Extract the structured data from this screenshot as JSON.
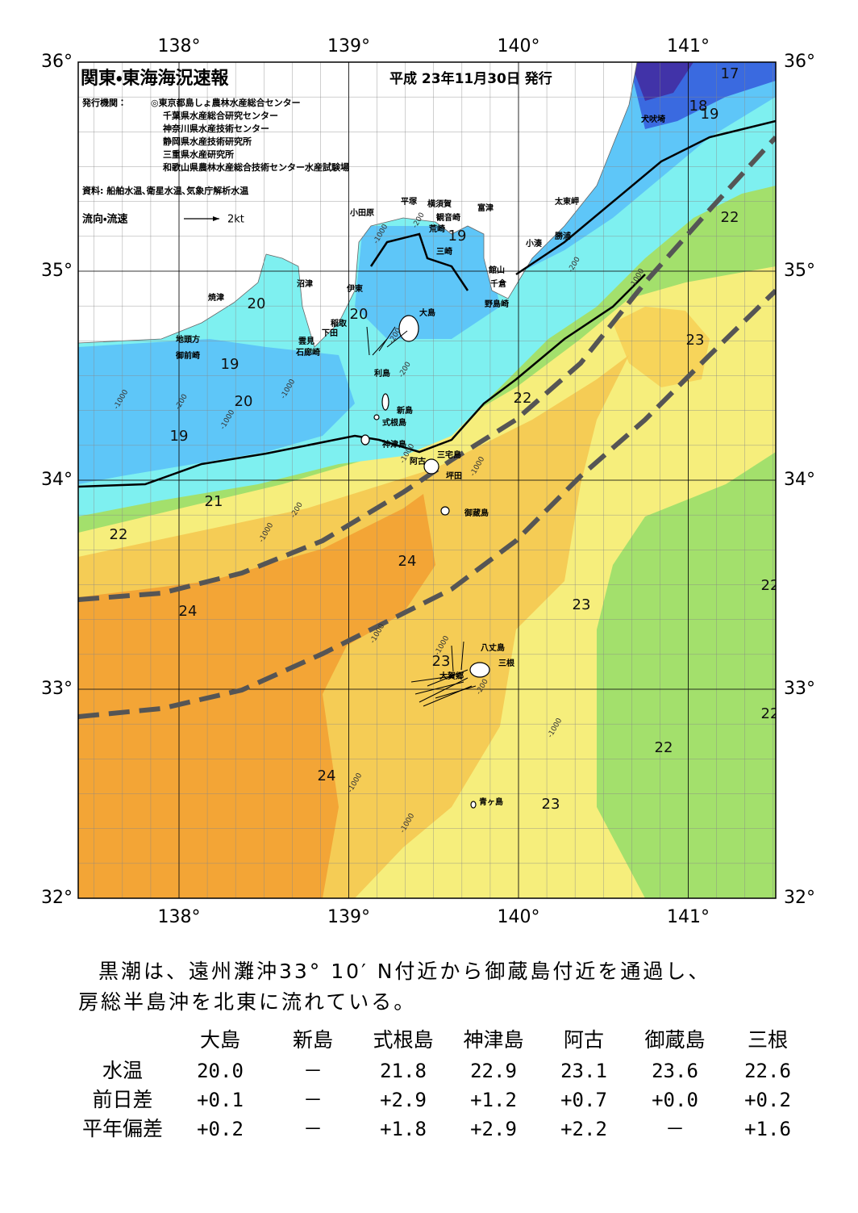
{
  "header": {
    "title": "関東・東海海況速報",
    "issued": "平成 23年11月30日 発行",
    "publisher_label": "発行機関：",
    "publishers": [
      "◎東京都島しょ農林水産総合センター",
      "千葉県水産総合研究センター",
      "神奈川県水産技術センター",
      "静岡県水産技術研究所",
      "三重県水産研究所",
      "和歌山県農林水産総合技術センター水産試験場"
    ],
    "source": "資料: 船舶水温､衛星水温､気象庁解析水温",
    "legend_label": "流向・流速",
    "legend_speed": "2kt"
  },
  "map": {
    "lon_ticks": [
      {
        "value": 138,
        "label": "138°"
      },
      {
        "value": 139,
        "label": "139°"
      },
      {
        "value": 140,
        "label": "140°"
      },
      {
        "value": 141,
        "label": "141°"
      }
    ],
    "lat_ticks": [
      {
        "value": 36,
        "label": "36°"
      },
      {
        "value": 35,
        "label": "35°"
      },
      {
        "value": 34,
        "label": "34°"
      },
      {
        "value": 33,
        "label": "33°"
      },
      {
        "value": 32,
        "label": "32°"
      }
    ],
    "isotherm_labels": [
      17,
      18,
      19,
      19,
      20,
      20,
      19,
      20,
      19,
      22,
      23,
      22,
      21,
      22,
      24,
      24,
      23,
      22,
      23,
      22,
      22,
      24,
      23
    ],
    "depth_labels": [
      -1000,
      -200,
      -1000,
      -1000,
      -200,
      -200,
      -1000,
      -1000,
      -200,
      -1000,
      -1000,
      -1000,
      -1000,
      -1000,
      -1000,
      -200,
      -200,
      -1000,
      -200,
      -1000
    ],
    "places": [
      "犬吠埼",
      "太東岬",
      "勝浦",
      "小湊",
      "富津",
      "横須賀",
      "観音崎",
      "平塚",
      "小田原",
      "荒崎",
      "三崎",
      "館山",
      "千倉",
      "野島崎",
      "沼津",
      "焼津",
      "伊東",
      "稲取",
      "下田",
      "雲見",
      "石廊崎",
      "地頭方",
      "御前崎",
      "大島",
      "利島",
      "新島",
      "式根島",
      "神津島",
      "阿古",
      "三宅島",
      "坪田",
      "御蔵島",
      "八丈島",
      "三根",
      "大賀郷",
      "青ヶ島"
    ]
  },
  "summary": {
    "lines": [
      "黒潮は、遠州灘沖33° 10′ N付近から御蔵島付近を通過し、",
      "房総半島沖を北東に流れている。"
    ]
  },
  "table": {
    "columns": [
      "大島",
      "新島",
      "式根島",
      "神津島",
      "阿古",
      "御蔵島",
      "三根"
    ],
    "rows": [
      {
        "label": "水温",
        "cells": [
          "20.0",
          "－",
          "21.8",
          "22.9",
          "23.1",
          "23.6",
          "22.6"
        ]
      },
      {
        "label": "前日差",
        "cells": [
          "+0.1",
          "－",
          "+2.9",
          "+1.2",
          "+0.7",
          "+0.0",
          "+0.2"
        ]
      },
      {
        "label": "平年偏差",
        "cells": [
          "+0.2",
          "－",
          "+1.8",
          "+2.9",
          "+2.2",
          "－",
          "+1.6"
        ]
      }
    ]
  }
}
